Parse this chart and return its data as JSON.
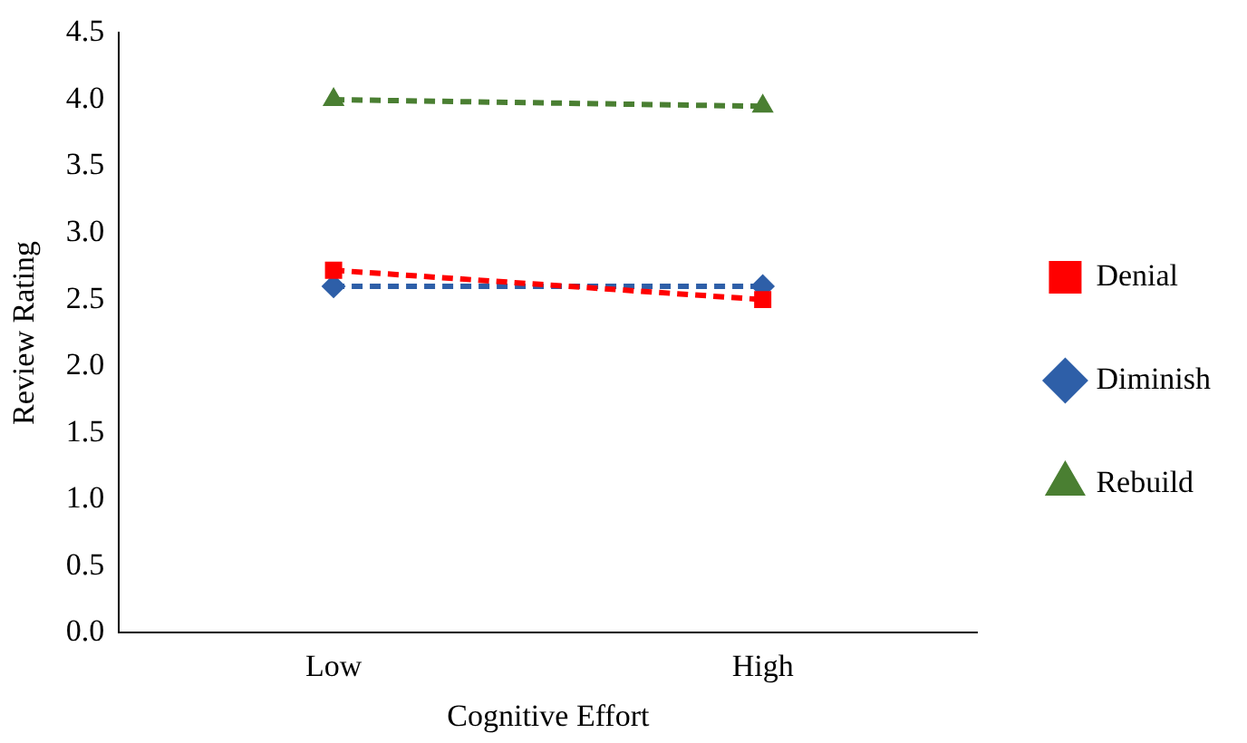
{
  "chart_data": {
    "type": "line",
    "xlabel": "Cognitive Effort",
    "ylabel": "Review Rating",
    "categories": [
      "Low",
      "High"
    ],
    "series": [
      {
        "name": "Denial",
        "color": "#ff0000",
        "values": [
          2.72,
          2.5
        ],
        "marker": "square"
      },
      {
        "name": "Diminish",
        "color": "#2e5fa8",
        "values": [
          2.6,
          2.6
        ],
        "marker": "diamond"
      },
      {
        "name": "Rebuild",
        "color": "#4a7f32",
        "values": [
          4.0,
          3.95
        ],
        "marker": "triangle"
      }
    ],
    "ylim": [
      0,
      4.5
    ],
    "yticks": [
      {
        "value": 0,
        "label": "0.0"
      },
      0.5,
      {
        "value": 1,
        "label": "1.0"
      },
      1.5,
      {
        "value": 2,
        "label": "2.0"
      },
      2.5,
      {
        "value": 3,
        "label": "3.0"
      },
      3.5,
      {
        "value": 4,
        "label": "4.0"
      },
      4.5
    ],
    "grid": false,
    "legend": "right",
    "line_style": "dashed"
  }
}
